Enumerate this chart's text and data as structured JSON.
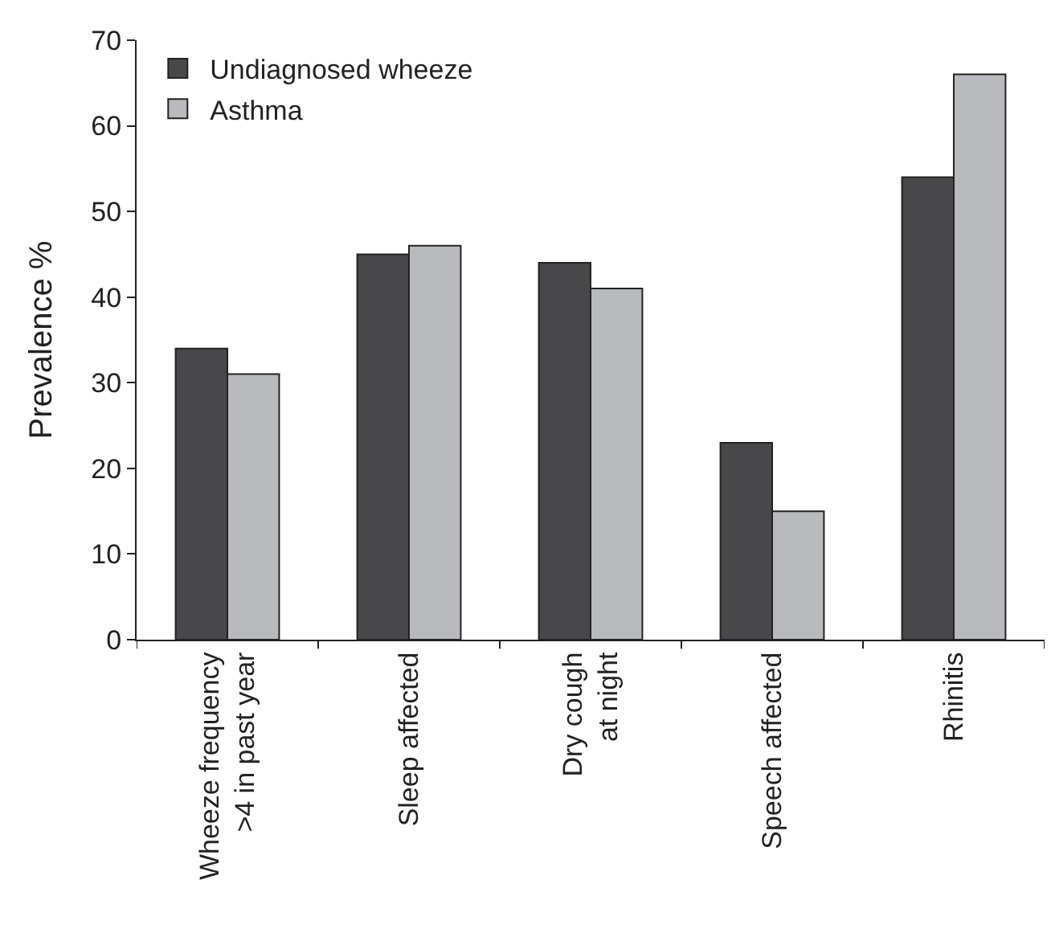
{
  "chart_data": {
    "type": "bar",
    "ylabel": "Prevalence %",
    "categories": [
      "Wheeze frequency\n>4 in past year",
      "Sleep affected",
      "Dry cough\nat night",
      "Speech affected",
      "Rhinitis"
    ],
    "series": [
      {
        "name": "Undiagnosed wheeze",
        "color": "#48484a",
        "values": [
          34,
          45,
          44,
          23,
          54
        ]
      },
      {
        "name": "Asthma",
        "color": "#b9babe",
        "values": [
          31,
          46,
          41,
          15,
          66
        ]
      }
    ],
    "ylim": [
      0,
      70
    ],
    "yticks": [
      0,
      10,
      20,
      30,
      40,
      50,
      60,
      70
    ],
    "legend": "top left"
  }
}
